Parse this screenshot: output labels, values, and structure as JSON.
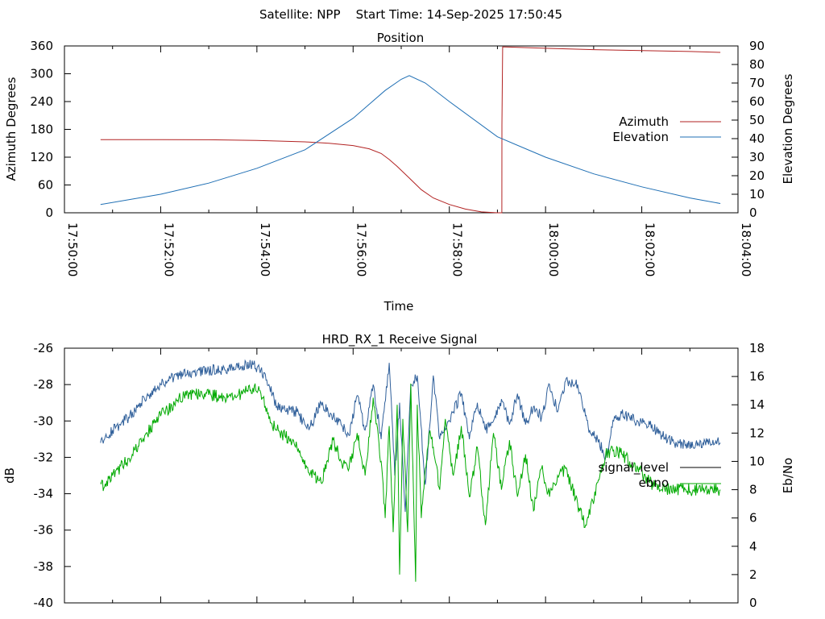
{
  "header": {
    "title": "Satellite: NPP    Start Time: 14-Sep-2025 17:50:45"
  },
  "colors": {
    "azimuth": "#b22222",
    "elevation": "#1f6fb4",
    "signal_level": "#2f5f9a",
    "ebno": "#00aa00",
    "signal_level_legend": "#000000",
    "axis": "#000000"
  },
  "chart_data": [
    {
      "type": "line",
      "title": "Position",
      "xlabel": "Time",
      "ylabel": "Azimuth Degrees",
      "y2label": "Elevation Degrees",
      "xlim": [
        0,
        840
      ],
      "ylim": [
        0,
        360
      ],
      "y2lim": [
        0,
        90
      ],
      "yticks": [
        0,
        60,
        120,
        180,
        240,
        300,
        360
      ],
      "y2ticks": [
        0,
        10,
        20,
        30,
        40,
        50,
        60,
        70,
        80,
        90
      ],
      "xtick_values": [
        0,
        120,
        240,
        360,
        480,
        600,
        720,
        840
      ],
      "xtick_labels": [
        "17:50:00",
        "17:52:00",
        "17:54:00",
        "17:56:00",
        "17:58:00",
        "18:00:00",
        "18:02:00",
        "18:04:00"
      ],
      "legend": "right",
      "grid": false,
      "series": [
        {
          "name": "Azimuth",
          "axis": "left",
          "x": [
            45,
            120,
            180,
            240,
            300,
            330,
            360,
            380,
            395,
            405,
            415,
            430,
            445,
            460,
            480,
            500,
            520,
            540,
            545.5,
            545.6,
            546.5,
            549,
            600,
            660,
            720,
            780,
            818
          ],
          "values": [
            158,
            158,
            157.5,
            156,
            153,
            150,
            145,
            138,
            128,
            115,
            100,
            75,
            50,
            32,
            18,
            8,
            2,
            0,
            0,
            190,
            358,
            358,
            355,
            352,
            350,
            348,
            346
          ]
        },
        {
          "name": "Elevation",
          "axis": "right",
          "x": [
            45,
            120,
            180,
            240,
            300,
            360,
            400,
            420,
            430,
            450,
            480,
            540,
            600,
            660,
            720,
            780,
            818
          ],
          "values": [
            4.5,
            10,
            16,
            24,
            34,
            51,
            66,
            72,
            74,
            70,
            60,
            41,
            30,
            21,
            14,
            8,
            5
          ]
        }
      ]
    },
    {
      "type": "line",
      "title": "HRD_RX_1 Receive Signal",
      "xlabel": "",
      "ylabel": "dB",
      "y2label": "Eb/No",
      "xlim": [
        0,
        840
      ],
      "ylim": [
        -40,
        -26
      ],
      "y2lim": [
        0,
        18
      ],
      "yticks": [
        -40,
        -38,
        -36,
        -34,
        -32,
        -30,
        -28,
        -26
      ],
      "y2ticks": [
        0,
        2,
        4,
        6,
        8,
        10,
        12,
        14,
        16,
        18
      ],
      "legend": "right",
      "grid": false,
      "series": [
        {
          "name": "signal_level",
          "axis": "left",
          "x": [
            45,
            50,
            60,
            80,
            100,
            120,
            140,
            160,
            180,
            200,
            220,
            235,
            245,
            255,
            265,
            275,
            290,
            305,
            320,
            335,
            345,
            355,
            365,
            375,
            385,
            395,
            405,
            412,
            418,
            425,
            432,
            440,
            450,
            460,
            468,
            475,
            485,
            495,
            505,
            515,
            525,
            535,
            545,
            555,
            565,
            575,
            585,
            595,
            605,
            615,
            625,
            640,
            655,
            665,
            675,
            685,
            695,
            705,
            715,
            730,
            745,
            760,
            775,
            790,
            805,
            818
          ],
          "values": [
            -31.2,
            -31.0,
            -30.5,
            -29.8,
            -28.8,
            -28.0,
            -27.5,
            -27.3,
            -27.2,
            -27.2,
            -27.0,
            -26.9,
            -27.2,
            -28.0,
            -29.2,
            -29.4,
            -29.5,
            -30.5,
            -29.0,
            -29.8,
            -30.2,
            -30.8,
            -28.6,
            -30.5,
            -28.0,
            -31.0,
            -26.8,
            -33.0,
            -29.0,
            -35.0,
            -28.0,
            -27.5,
            -33.5,
            -27.5,
            -31.0,
            -30.5,
            -29.5,
            -28.5,
            -31.0,
            -29.0,
            -30.5,
            -30.0,
            -28.8,
            -30.2,
            -28.5,
            -30.2,
            -29.2,
            -29.8,
            -28.0,
            -29.5,
            -27.8,
            -28.0,
            -30.5,
            -31.0,
            -32.0,
            -30.0,
            -29.6,
            -29.8,
            -30.0,
            -30.2,
            -30.8,
            -31.2,
            -31.3,
            -31.2,
            -31.2,
            -31.2
          ]
        },
        {
          "name": "ebno",
          "axis": "right",
          "x": [
            45,
            50,
            60,
            80,
            100,
            120,
            140,
            160,
            180,
            200,
            220,
            235,
            245,
            255,
            265,
            275,
            290,
            305,
            320,
            335,
            345,
            355,
            365,
            375,
            385,
            395,
            400,
            405,
            410,
            415,
            418,
            422,
            428,
            432,
            438,
            440,
            445,
            450,
            455,
            460,
            468,
            475,
            485,
            495,
            505,
            515,
            525,
            535,
            545,
            555,
            565,
            575,
            585,
            595,
            605,
            615,
            625,
            640,
            650,
            665,
            675,
            685,
            695,
            705,
            715,
            730,
            745,
            760,
            775,
            790,
            805,
            818
          ],
          "values": [
            8.5,
            8.2,
            9.0,
            10.2,
            11.8,
            13.2,
            14.3,
            14.8,
            14.7,
            14.5,
            14.8,
            15.2,
            14.8,
            13.0,
            12.2,
            11.8,
            11.0,
            9.2,
            8.5,
            11.5,
            10.0,
            9.5,
            12.0,
            9.0,
            14.5,
            10.0,
            6.0,
            12.5,
            5.0,
            14.0,
            2.0,
            13.0,
            5.0,
            15.5,
            1.5,
            14.0,
            6.0,
            9.5,
            12.0,
            11.0,
            8.0,
            13.0,
            9.0,
            12.5,
            7.5,
            11.0,
            5.5,
            12.0,
            8.0,
            11.5,
            7.5,
            10.5,
            6.5,
            9.5,
            7.5,
            9.0,
            9.5,
            7.0,
            5.5,
            8.5,
            10.5,
            10.8,
            10.5,
            10.0,
            9.5,
            8.5,
            8.0,
            8.0,
            8.0,
            8.0,
            8.0,
            8.0
          ]
        }
      ]
    }
  ]
}
